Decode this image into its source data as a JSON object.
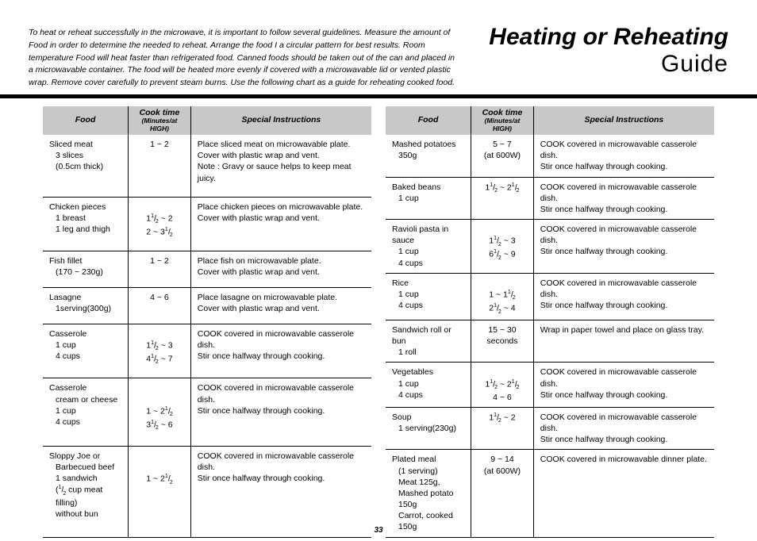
{
  "header": {
    "intro": "To heat or reheat successfully in the microwave, it is important to follow several guidelines. Measure the amount of Food in order to determine the needed to reheat. Arrange the food I a circular pattern for best results. Room temperature Food will heat faster than refrigerated food. Canned foods should be taken out of the can and placed in a microwavable container. The food will be heated more evenly if covered with a microwavable lid or vented plastic wrap. Remove cover carefully to prevent steam burns. Use the following chart as a guide for reheating cooked food.",
    "title_main": "Heating or Reheating",
    "title_sub": "Guide"
  },
  "columns": {
    "food": "Food",
    "time_main": "Cook time",
    "time_sub": "(Minutes/at HIGH)",
    "instr": "Special Instructions"
  },
  "left_rows": [
    {
      "food_main": "Sliced meat",
      "food_sub": [
        "3 slices",
        "(0.5cm thick)"
      ],
      "times": [
        "1 ~ 2"
      ],
      "instr": [
        "Place sliced meat on microwavable plate.",
        "Cover with plastic wrap and vent.",
        "Note : Gravy or sauce helps to keep meat juicy."
      ]
    },
    {
      "food_main": "Chicken pieces",
      "food_sub": [
        "1 breast",
        "1 leg and thigh"
      ],
      "times": [
        "",
        "1{1/2} ~ 2",
        "2 ~ 3{1/2}"
      ],
      "instr": [
        "Place chicken pieces on microwavable plate.",
        "Cover with plastic wrap and vent."
      ]
    },
    {
      "food_main": "Fish fillet",
      "food_sub": [
        "(170 ~ 230g)"
      ],
      "times": [
        "1 ~ 2"
      ],
      "instr": [
        "Place fish on microwavable plate.",
        "Cover with plastic wrap and vent."
      ]
    },
    {
      "food_main": "Lasagne",
      "food_sub": [
        "1serving(300g)"
      ],
      "times": [
        "4 ~ 6"
      ],
      "instr": [
        "Place lasagne on microwavable plate.",
        "Cover with plastic wrap and vent."
      ]
    },
    {
      "food_main": "Casserole",
      "food_sub": [
        "1 cup",
        "4 cups"
      ],
      "times": [
        "",
        "1{1/2} ~ 3",
        "4{1/2} ~ 7"
      ],
      "instr": [
        "COOK covered in microwavable casserole dish.",
        "Stir once halfway through cooking."
      ]
    },
    {
      "food_main": "Casserole",
      "food_sub": [
        "cream or cheese",
        "1 cup",
        "4 cups"
      ],
      "times": [
        "",
        "",
        "1 ~ 2{1/2}",
        "3{1/2} ~ 6"
      ],
      "instr": [
        "COOK covered in microwavable casserole dish.",
        "Stir once halfway through cooking."
      ]
    },
    {
      "food_main": "Sloppy Joe or",
      "food_sub": [
        "Barbecued beef",
        "1 sandwich",
        "({1/2} cup meat filling)",
        "without bun"
      ],
      "times": [
        "",
        "",
        "1 ~ 2{1/2}"
      ],
      "instr": [
        "COOK covered in microwavable casserole dish.",
        "Stir once halfway through cooking."
      ]
    }
  ],
  "right_rows": [
    {
      "food_main": "Mashed potatoes",
      "food_sub": [
        "350g"
      ],
      "times": [
        "5 ~ 7",
        "(at 600W)"
      ],
      "instr": [
        "COOK covered in microwavable casserole dish.",
        "Stir once halfway through cooking."
      ]
    },
    {
      "food_main": "Baked beans",
      "food_sub": [
        "1 cup"
      ],
      "times": [
        "1{1/2} ~ 2{1/2}"
      ],
      "instr": [
        "COOK covered in microwavable casserole dish.",
        "Stir once halfway through cooking."
      ]
    },
    {
      "food_main": "Ravioli pasta in sauce",
      "food_sub": [
        "1 cup",
        "4 cups"
      ],
      "times": [
        "",
        "1{1/2} ~ 3",
        "6{1/2} ~ 9"
      ],
      "instr": [
        "COOK covered in microwavable casserole dish.",
        "Stir once halfway through cooking."
      ]
    },
    {
      "food_main": "Rice",
      "food_sub": [
        "1 cup",
        "4 cups"
      ],
      "times": [
        "",
        "1 ~ 1{1/2}",
        "2{1/2} ~ 4"
      ],
      "instr": [
        "COOK covered in microwavable casserole dish.",
        "Stir once halfway through cooking."
      ]
    },
    {
      "food_main": "Sandwich roll or bun",
      "food_sub": [
        "1 roll"
      ],
      "times": [
        "15 ~ 30",
        "seconds"
      ],
      "instr": [
        "Wrap in paper towel and place on glass tray."
      ]
    },
    {
      "food_main": "Vegetables",
      "food_sub": [
        "1 cup",
        "4 cups"
      ],
      "times": [
        "",
        "1{1/2} ~ 2{1/2}",
        "4 ~ 6"
      ],
      "instr": [
        "COOK covered in microwavable casserole dish.",
        "Stir once halfway through cooking."
      ]
    },
    {
      "food_main": "Soup",
      "food_sub": [
        "1 serving(230g)"
      ],
      "times": [
        "1{1/2} ~ 2"
      ],
      "instr": [
        "COOK covered in microwavable casserole dish.",
        "Stir once halfway through cooking."
      ]
    },
    {
      "food_main": "Plated meal",
      "food_sub": [
        "(1 serving)",
        "Meat 125g,",
        "Mashed potato 150g",
        "Carrot, cooked 150g"
      ],
      "times": [
        "9 ~ 14",
        "(at 600W)"
      ],
      "instr": [
        "COOK covered in microwavable dinner plate."
      ]
    }
  ],
  "page_number": "33",
  "style": {
    "header_bg": "#c8c8c8",
    "rule_color": "#000000",
    "text_color": "#000000",
    "body_bg": "#ffffff",
    "intro_fontsize": 10.5,
    "table_fontsize": 10.5,
    "title_fontsize": 30
  }
}
